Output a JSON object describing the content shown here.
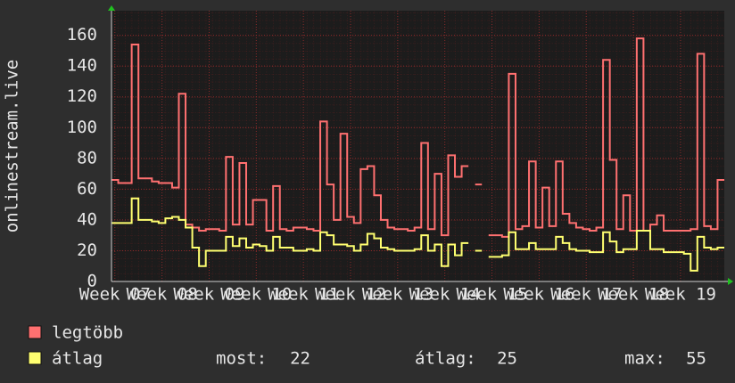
{
  "chart_data": {
    "type": "line",
    "y_label": "onlinestream.live",
    "xlim": [
      0,
      91
    ],
    "ylim": [
      0,
      176
    ],
    "xticks": [
      {
        "value": 0.5,
        "label": "Week 07"
      },
      {
        "value": 7.5,
        "label": "Week 08"
      },
      {
        "value": 14.5,
        "label": "Week 09"
      },
      {
        "value": 21.5,
        "label": "Week 10"
      },
      {
        "value": 28.5,
        "label": "Week 11"
      },
      {
        "value": 35.5,
        "label": "Week 12"
      },
      {
        "value": 42.5,
        "label": "Week 13"
      },
      {
        "value": 49.5,
        "label": "Week 14"
      },
      {
        "value": 56.5,
        "label": "Week 15"
      },
      {
        "value": 63.5,
        "label": "Week 16"
      },
      {
        "value": 70.5,
        "label": "Week 17"
      },
      {
        "value": 77.5,
        "label": "Week 18"
      },
      {
        "value": 84.5,
        "label": "Week 19"
      }
    ],
    "yticks": [
      0,
      20,
      40,
      60,
      80,
      100,
      120,
      140,
      160
    ],
    "grid": true,
    "x": [
      0,
      1,
      2,
      3,
      4,
      5,
      6,
      7,
      8,
      9,
      10,
      11,
      12,
      13,
      14,
      15,
      16,
      17,
      18,
      19,
      20,
      21,
      22,
      23,
      24,
      25,
      26,
      27,
      28,
      29,
      30,
      31,
      32,
      33,
      34,
      35,
      36,
      37,
      38,
      39,
      40,
      41,
      42,
      43,
      44,
      45,
      46,
      47,
      48,
      49,
      50,
      51,
      52,
      53,
      54,
      55,
      56,
      57,
      58,
      59,
      60,
      61,
      62,
      63,
      64,
      65,
      66,
      67,
      68,
      69,
      70,
      71,
      72,
      73,
      74,
      75,
      76,
      77,
      78,
      79,
      80,
      81,
      82,
      83,
      84,
      85,
      86,
      87,
      88,
      89,
      90
    ],
    "series": [
      {
        "name": "legtöbb",
        "color": "#ff7070",
        "values": [
          66,
          64,
          64,
          154,
          67,
          67,
          65,
          64,
          64,
          61,
          122,
          37,
          35,
          33,
          34,
          34,
          33,
          81,
          37,
          77,
          37,
          53,
          53,
          33,
          62,
          34,
          33,
          35,
          35,
          34,
          33,
          104,
          63,
          40,
          96,
          42,
          38,
          73,
          75,
          56,
          40,
          35,
          34,
          34,
          33,
          35,
          90,
          34,
          70,
          30,
          82,
          68,
          75,
          null,
          63,
          null,
          30,
          30,
          29,
          135,
          34,
          36,
          78,
          35,
          61,
          36,
          78,
          44,
          38,
          35,
          34,
          33,
          35,
          144,
          79,
          34,
          56,
          33,
          158,
          33,
          37,
          43,
          33,
          33,
          33,
          33,
          34,
          148,
          36,
          34,
          66
        ]
      },
      {
        "name": "átlag",
        "color": "#ffff70",
        "values": [
          38,
          38,
          38,
          54,
          40,
          40,
          39,
          38,
          41,
          42,
          40,
          35,
          22,
          10,
          20,
          20,
          20,
          29,
          23,
          28,
          22,
          24,
          23,
          20,
          29,
          22,
          22,
          20,
          20,
          21,
          20,
          32,
          30,
          24,
          24,
          23,
          20,
          24,
          31,
          28,
          22,
          21,
          20,
          20,
          20,
          21,
          30,
          20,
          24,
          10,
          24,
          17,
          25,
          null,
          20,
          null,
          16,
          16,
          17,
          32,
          21,
          21,
          25,
          21,
          21,
          21,
          29,
          25,
          21,
          20,
          20,
          19,
          19,
          32,
          26,
          19,
          21,
          21,
          33,
          33,
          21,
          21,
          19,
          19,
          19,
          18,
          7,
          29,
          22,
          21,
          22
        ]
      }
    ],
    "stats": [
      {
        "label": "most:",
        "value": 22
      },
      {
        "label": "átlag:",
        "value": 25
      },
      {
        "label": "max:",
        "value": 55
      }
    ]
  }
}
